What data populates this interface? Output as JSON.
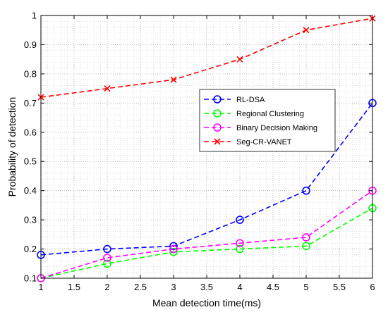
{
  "chart_data": {
    "type": "line",
    "xlabel": "Mean detection time(ms)",
    "ylabel": "Probability of detection",
    "xlim": [
      1,
      6
    ],
    "ylim": [
      0.1,
      1
    ],
    "xticks": [
      "1",
      "1.5",
      "2",
      "2.5",
      "3",
      "3.5",
      "4",
      "4.5",
      "5",
      "5.5",
      "6"
    ],
    "yticks": [
      "0.1",
      "0.2",
      "0.3",
      "0.4",
      "0.5",
      "0.6",
      "0.7",
      "0.8",
      "0.9",
      "1"
    ],
    "grid": true,
    "legend_position": "center-right",
    "x": [
      1,
      2,
      3,
      4,
      5,
      6
    ],
    "series": [
      {
        "name": "RL-DSA",
        "color": "#0000ff",
        "marker": "circle",
        "line": "dashed",
        "values": [
          0.18,
          0.2,
          0.21,
          0.3,
          0.4,
          0.7
        ]
      },
      {
        "name": "Regional Clustering",
        "color": "#00ff00",
        "marker": "circle",
        "line": "dashed",
        "values": [
          0.1,
          0.15,
          0.19,
          0.2,
          0.21,
          0.34
        ]
      },
      {
        "name": "Binary Decision Making",
        "color": "#ff00ff",
        "marker": "circle",
        "line": "dashed",
        "values": [
          0.1,
          0.17,
          0.2,
          0.22,
          0.24,
          0.4
        ]
      },
      {
        "name": "Seg-CR-VANET",
        "color": "#ff0000",
        "marker": "x",
        "line": "dashed",
        "values": [
          0.72,
          0.75,
          0.78,
          0.85,
          0.95,
          0.99
        ]
      }
    ]
  }
}
